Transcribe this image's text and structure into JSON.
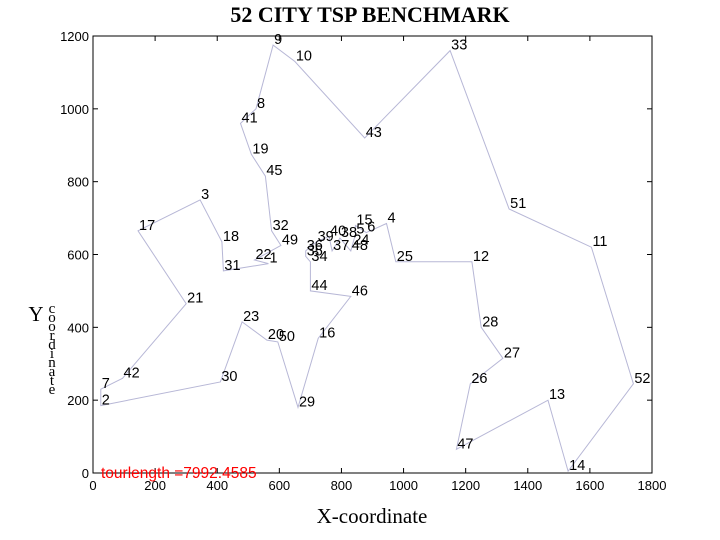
{
  "chart_data": {
    "type": "line",
    "title": "52 CITY TSP BENCHMARK",
    "xlabel": "X-coordinate",
    "ylabel": "Y",
    "ylabel_vertical": "coordinate",
    "annotation": "tourlength =7992.4585",
    "xlim": [
      0,
      1800
    ],
    "ylim": [
      0,
      1200
    ],
    "xticks": [
      0,
      200,
      400,
      600,
      800,
      1000,
      1200,
      1400,
      1600,
      1800
    ],
    "yticks": [
      0,
      200,
      400,
      600,
      800,
      1000,
      1200
    ],
    "grid": false,
    "line_color": "#b7b7d6",
    "annotation_color": "#ff0000",
    "cities": [
      {
        "id": 1,
        "x": 565,
        "y": 575
      },
      {
        "id": 2,
        "x": 25,
        "y": 185
      },
      {
        "id": 3,
        "x": 345,
        "y": 750
      },
      {
        "id": 4,
        "x": 945,
        "y": 685
      },
      {
        "id": 5,
        "x": 845,
        "y": 655
      },
      {
        "id": 6,
        "x": 880,
        "y": 660
      },
      {
        "id": 7,
        "x": 25,
        "y": 230
      },
      {
        "id": 8,
        "x": 525,
        "y": 1000
      },
      {
        "id": 9,
        "x": 580,
        "y": 1175
      },
      {
        "id": 10,
        "x": 650,
        "y": 1130
      },
      {
        "id": 11,
        "x": 1605,
        "y": 620
      },
      {
        "id": 12,
        "x": 1220,
        "y": 580
      },
      {
        "id": 13,
        "x": 1465,
        "y": 200
      },
      {
        "id": 14,
        "x": 1530,
        "y": 5
      },
      {
        "id": 15,
        "x": 845,
        "y": 680
      },
      {
        "id": 16,
        "x": 725,
        "y": 370
      },
      {
        "id": 17,
        "x": 145,
        "y": 665
      },
      {
        "id": 18,
        "x": 415,
        "y": 635
      },
      {
        "id": 19,
        "x": 510,
        "y": 875
      },
      {
        "id": 20,
        "x": 560,
        "y": 365
      },
      {
        "id": 21,
        "x": 300,
        "y": 465
      },
      {
        "id": 22,
        "x": 520,
        "y": 585
      },
      {
        "id": 23,
        "x": 480,
        "y": 415
      },
      {
        "id": 24,
        "x": 835,
        "y": 625
      },
      {
        "id": 25,
        "x": 975,
        "y": 580
      },
      {
        "id": 26,
        "x": 1215,
        "y": 245
      },
      {
        "id": 27,
        "x": 1320,
        "y": 315
      },
      {
        "id": 28,
        "x": 1250,
        "y": 400
      },
      {
        "id": 29,
        "x": 660,
        "y": 180
      },
      {
        "id": 30,
        "x": 410,
        "y": 250
      },
      {
        "id": 31,
        "x": 420,
        "y": 555
      },
      {
        "id": 32,
        "x": 575,
        "y": 665
      },
      {
        "id": 33,
        "x": 1150,
        "y": 1160
      },
      {
        "id": 34,
        "x": 700,
        "y": 580
      },
      {
        "id": 35,
        "x": 685,
        "y": 595
      },
      {
        "id": 36,
        "x": 685,
        "y": 610
      },
      {
        "id": 37,
        "x": 770,
        "y": 610
      },
      {
        "id": 38,
        "x": 795,
        "y": 645
      },
      {
        "id": 39,
        "x": 720,
        "y": 635
      },
      {
        "id": 40,
        "x": 760,
        "y": 650
      },
      {
        "id": 41,
        "x": 475,
        "y": 960
      },
      {
        "id": 42,
        "x": 95,
        "y": 260
      },
      {
        "id": 43,
        "x": 875,
        "y": 920
      },
      {
        "id": 44,
        "x": 700,
        "y": 500
      },
      {
        "id": 45,
        "x": 555,
        "y": 815
      },
      {
        "id": 46,
        "x": 830,
        "y": 485
      },
      {
        "id": 47,
        "x": 1170,
        "y": 65
      },
      {
        "id": 48,
        "x": 830,
        "y": 610
      },
      {
        "id": 49,
        "x": 605,
        "y": 625
      },
      {
        "id": 50,
        "x": 595,
        "y": 360
      },
      {
        "id": 51,
        "x": 1340,
        "y": 725
      },
      {
        "id": 52,
        "x": 1740,
        "y": 245
      }
    ],
    "tour": [
      1,
      22,
      49,
      32,
      45,
      19,
      41,
      8,
      9,
      10,
      43,
      33,
      51,
      11,
      52,
      14,
      13,
      47,
      26,
      27,
      28,
      12,
      25,
      4,
      6,
      15,
      5,
      24,
      48,
      38,
      37,
      40,
      39,
      36,
      35,
      34,
      44,
      46,
      16,
      29,
      50,
      20,
      23,
      30,
      2,
      7,
      42,
      21,
      17,
      3,
      18,
      31,
      1
    ]
  }
}
